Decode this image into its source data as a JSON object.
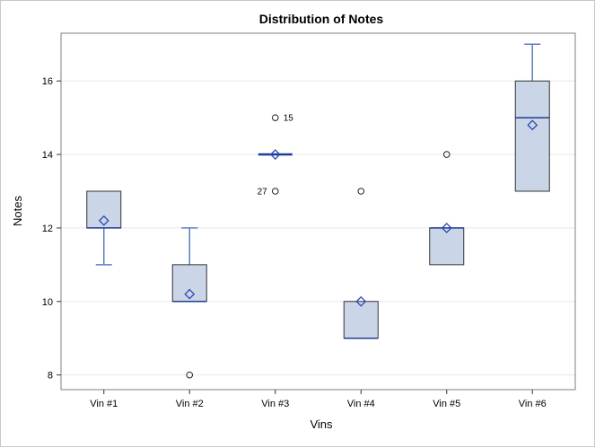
{
  "chart_data": {
    "type": "box",
    "title": "Distribution of Notes",
    "xlabel": "Vins",
    "ylabel": "Notes",
    "categories": [
      "Vin #1",
      "Vin #2",
      "Vin #3",
      "Vin #4",
      "Vin #5",
      "Vin #6"
    ],
    "ylim": [
      7.6,
      17.3
    ],
    "yticks": [
      8,
      10,
      12,
      14,
      16
    ],
    "grid": true,
    "boxes": [
      {
        "category": "Vin #1",
        "whisker_low": 11,
        "q1": 12,
        "median": 12,
        "q3": 13,
        "whisker_high": 13,
        "mean": 12.2,
        "outliers": []
      },
      {
        "category": "Vin #2",
        "whisker_low": 10,
        "q1": 10,
        "median": 10,
        "q3": 11,
        "whisker_high": 12,
        "mean": 10.2,
        "outliers": [
          {
            "y": 8,
            "label": ""
          }
        ]
      },
      {
        "category": "Vin #3",
        "whisker_low": 14,
        "q1": 14,
        "median": 14,
        "q3": 14,
        "whisker_high": 14,
        "mean": 14,
        "outliers": [
          {
            "y": 15,
            "label": "15"
          },
          {
            "y": 13,
            "label": "27"
          }
        ]
      },
      {
        "category": "Vin #4",
        "whisker_low": 9,
        "q1": 9,
        "median": 9,
        "q3": 10,
        "whisker_high": 10,
        "mean": 10,
        "outliers": [
          {
            "y": 13,
            "label": ""
          }
        ]
      },
      {
        "category": "Vin #5",
        "whisker_low": 11,
        "q1": 11,
        "median": 12,
        "q3": 12,
        "whisker_high": 12,
        "mean": 12,
        "outliers": [
          {
            "y": 14,
            "label": ""
          }
        ]
      },
      {
        "category": "Vin #6",
        "whisker_low": 13,
        "q1": 13,
        "median": 15,
        "q3": 16,
        "whisker_high": 17,
        "mean": 14.8,
        "outliers": []
      }
    ],
    "colors": {
      "box_fill": "#cbd5e8",
      "box_edge": "#333333",
      "whisker": "#5b7ec4",
      "median": "#1f3a93",
      "mean": "#2a4bb0",
      "grid": "#e8e8e8"
    }
  }
}
